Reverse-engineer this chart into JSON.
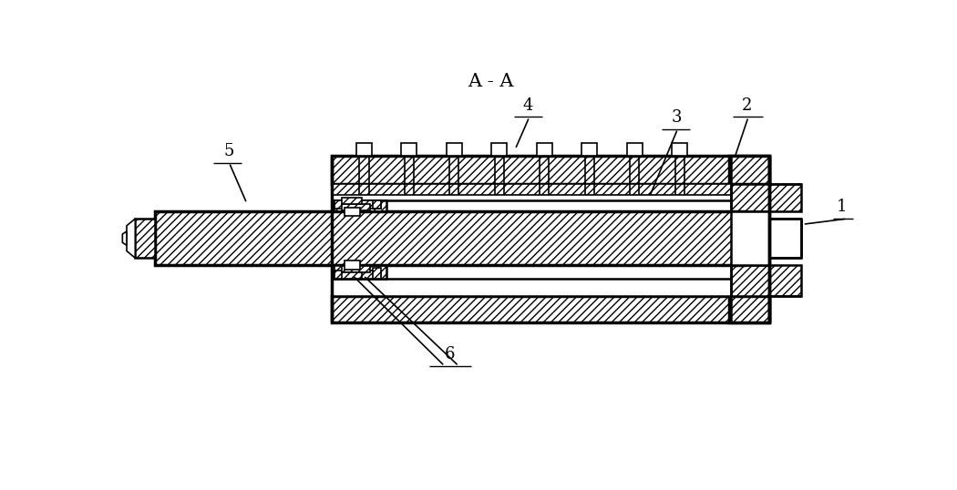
{
  "title": "A - A",
  "bg_color": "#ffffff",
  "line_color": "#000000",
  "figsize": [
    10.5,
    5.38
  ],
  "dpi": 100,
  "label_fontsize": 13,
  "title_fontsize": 15
}
